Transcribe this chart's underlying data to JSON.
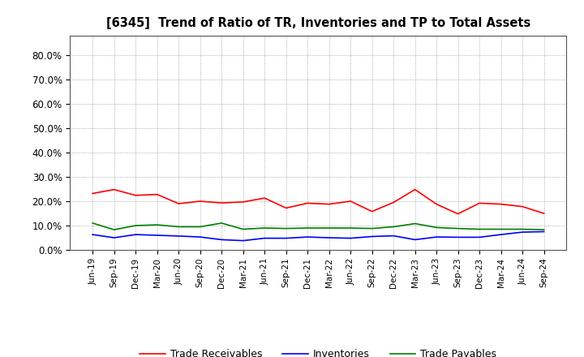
{
  "title": "[6345]  Trend of Ratio of TR, Inventories and TP to Total Assets",
  "x_labels": [
    "Jun-19",
    "Sep-19",
    "Dec-19",
    "Mar-20",
    "Jun-20",
    "Sep-20",
    "Dec-20",
    "Mar-21",
    "Jun-21",
    "Sep-21",
    "Dec-21",
    "Mar-22",
    "Jun-22",
    "Sep-22",
    "Dec-22",
    "Mar-23",
    "Jun-23",
    "Sep-23",
    "Dec-23",
    "Mar-24",
    "Jun-24",
    "Sep-24"
  ],
  "trade_receivables": [
    0.232,
    0.248,
    0.224,
    0.228,
    0.19,
    0.2,
    0.193,
    0.197,
    0.213,
    0.172,
    0.192,
    0.188,
    0.2,
    0.158,
    0.195,
    0.248,
    0.188,
    0.148,
    0.192,
    0.188,
    0.178,
    0.15
  ],
  "inventories": [
    0.063,
    0.05,
    0.063,
    0.06,
    0.057,
    0.053,
    0.042,
    0.038,
    0.048,
    0.048,
    0.053,
    0.05,
    0.048,
    0.055,
    0.058,
    0.042,
    0.053,
    0.052,
    0.052,
    0.063,
    0.073,
    0.075
  ],
  "trade_payables": [
    0.11,
    0.083,
    0.1,
    0.103,
    0.095,
    0.095,
    0.11,
    0.085,
    0.09,
    0.088,
    0.09,
    0.09,
    0.09,
    0.088,
    0.095,
    0.108,
    0.092,
    0.088,
    0.085,
    0.085,
    0.085,
    0.083
  ],
  "tr_color": "#FF0000",
  "inv_color": "#0000FF",
  "tp_color": "#008000",
  "ylim": [
    0.0,
    0.88
  ],
  "yticks": [
    0.0,
    0.1,
    0.2,
    0.3,
    0.4,
    0.5,
    0.6,
    0.7,
    0.8
  ],
  "ytick_labels": [
    "0.0%",
    "10.0%",
    "20.0%",
    "30.0%",
    "40.0%",
    "50.0%",
    "60.0%",
    "70.0%",
    "80.0%"
  ],
  "legend_labels": [
    "Trade Receivables",
    "Inventories",
    "Trade Payables"
  ],
  "background_color": "#FFFFFF",
  "grid_color": "#999999"
}
